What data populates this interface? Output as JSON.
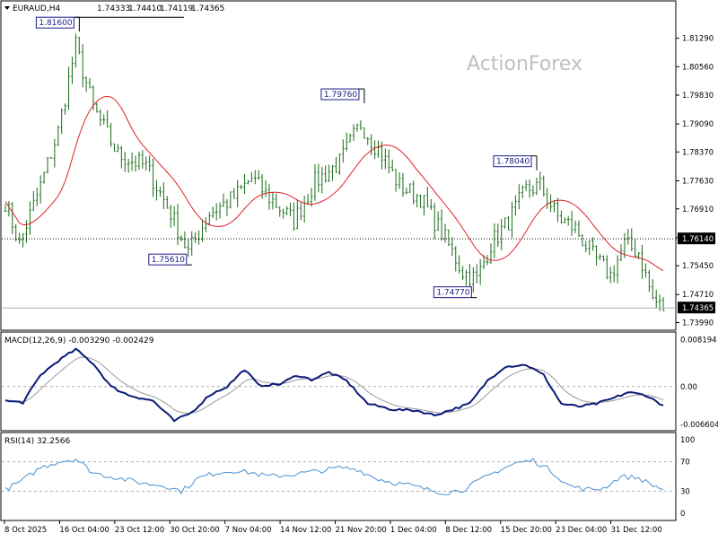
{
  "chart_data": {
    "type": "candlestick",
    "symbol_header": {
      "symbol": "EURAUD,H4",
      "ohlc": [
        "1.74333",
        "1.74410",
        "1.74119",
        "1.74365"
      ]
    },
    "watermark": "ActionForex",
    "price_axis": {
      "ticks": [
        1.8129,
        1.8056,
        1.7983,
        1.7909,
        1.7837,
        1.7763,
        1.7691,
        1.7617,
        1.7545,
        1.7471,
        1.7399
      ],
      "tick_labels": [
        "1.81290",
        "1.80560",
        "1.79830",
        "1.79090",
        "1.78370",
        "1.77630",
        "1.76910",
        "1.76170",
        "1.75450",
        "1.74710",
        "1.73990"
      ],
      "range": [
        1.7384,
        1.8195
      ]
    },
    "x_axis": {
      "labels": [
        "8 Oct 2025",
        "16 Oct 04:00",
        "23 Oct 12:00",
        "30 Oct 20:00",
        "7 Nov 04:00",
        "14 Nov 12:00",
        "21 Nov 20:00",
        "1 Dec 04:00",
        "8 Dec 12:00",
        "15 Dec 20:00",
        "23 Dec 04:00",
        "31 Dec 12:00"
      ],
      "bars": 300
    },
    "reference_levels": [
      {
        "value": 1.7614,
        "label": "1.76140",
        "style": "dotted"
      },
      {
        "value": 1.74365,
        "label": "1.74365",
        "style": "current"
      }
    ],
    "swing_labels": [
      {
        "label": "1.81600",
        "value": 1.816,
        "bar": 20,
        "side": "high"
      },
      {
        "label": "1.75610",
        "value": 1.7561,
        "bar": 52,
        "side": "low"
      },
      {
        "label": "1.79760",
        "value": 1.7976,
        "bar": 101,
        "side": "high"
      },
      {
        "label": "1.74770",
        "value": 1.7477,
        "bar": 133,
        "side": "low"
      },
      {
        "label": "1.78040",
        "value": 1.7804,
        "bar": 150,
        "side": "high"
      }
    ],
    "price_anchors": [
      [
        0,
        1.771
      ],
      [
        4,
        1.76
      ],
      [
        10,
        1.775
      ],
      [
        15,
        1.789
      ],
      [
        20,
        1.811
      ],
      [
        25,
        1.795
      ],
      [
        32,
        1.783
      ],
      [
        40,
        1.78
      ],
      [
        47,
        1.768
      ],
      [
        52,
        1.758
      ],
      [
        58,
        1.768
      ],
      [
        65,
        1.772
      ],
      [
        70,
        1.777
      ],
      [
        75,
        1.772
      ],
      [
        82,
        1.766
      ],
      [
        88,
        1.776
      ],
      [
        95,
        1.781
      ],
      [
        101,
        1.791
      ],
      [
        107,
        1.783
      ],
      [
        112,
        1.775
      ],
      [
        118,
        1.772
      ],
      [
        124,
        1.763
      ],
      [
        130,
        1.753
      ],
      [
        134,
        1.751
      ],
      [
        138,
        1.76
      ],
      [
        143,
        1.766
      ],
      [
        148,
        1.774
      ],
      [
        152,
        1.775
      ],
      [
        157,
        1.767
      ],
      [
        162,
        1.764
      ],
      [
        167,
        1.757
      ],
      [
        172,
        1.752
      ],
      [
        176,
        1.76
      ],
      [
        180,
        1.758
      ],
      [
        184,
        1.746
      ],
      [
        187,
        1.7436
      ]
    ],
    "moving_average": {
      "visible": true,
      "color": "#e0202a"
    },
    "macd": {
      "label": "MACD(12,26,9) -0.003290 -0.002429",
      "tick_labels": [
        "0.008194",
        "0.00",
        "-0.006604"
      ],
      "range": [
        -0.0074,
        0.0089
      ],
      "zero": 0.0,
      "main_color": "#0b1a78",
      "signal_color": "#9a9a9a",
      "anchors": [
        [
          0,
          -0.0025
        ],
        [
          5,
          -0.0028
        ],
        [
          10,
          0.002
        ],
        [
          15,
          0.0045
        ],
        [
          20,
          0.0065
        ],
        [
          25,
          0.004
        ],
        [
          30,
          0.0
        ],
        [
          35,
          -0.0015
        ],
        [
          42,
          -0.0025
        ],
        [
          48,
          -0.006
        ],
        [
          53,
          -0.0045
        ],
        [
          58,
          -0.0015
        ],
        [
          63,
          0.0
        ],
        [
          68,
          0.003
        ],
        [
          72,
          0.0002
        ],
        [
          78,
          0.0004
        ],
        [
          83,
          0.002
        ],
        [
          87,
          0.0012
        ],
        [
          92,
          0.0025
        ],
        [
          97,
          0.001
        ],
        [
          103,
          -0.003
        ],
        [
          110,
          -0.004
        ],
        [
          117,
          -0.0042
        ],
        [
          122,
          -0.005
        ],
        [
          127,
          -0.004
        ],
        [
          132,
          -0.003
        ],
        [
          137,
          0.001
        ],
        [
          142,
          0.0035
        ],
        [
          148,
          0.0038
        ],
        [
          153,
          0.002
        ],
        [
          158,
          -0.003
        ],
        [
          163,
          -0.0035
        ],
        [
          168,
          -0.003
        ],
        [
          173,
          -0.002
        ],
        [
          177,
          -0.001
        ],
        [
          182,
          -0.0015
        ],
        [
          187,
          -0.0033
        ]
      ]
    },
    "rsi": {
      "label": "RSI(14) 32.2566",
      "tick_labels": [
        "100",
        "70",
        "30",
        "0"
      ],
      "levels": [
        70,
        30
      ],
      "range": [
        0,
        100
      ],
      "color": "#4a90d0",
      "anchors": [
        [
          0,
          32
        ],
        [
          5,
          45
        ],
        [
          10,
          62
        ],
        [
          15,
          70
        ],
        [
          20,
          74
        ],
        [
          25,
          55
        ],
        [
          30,
          50
        ],
        [
          35,
          45
        ],
        [
          40,
          40
        ],
        [
          45,
          38
        ],
        [
          50,
          30
        ],
        [
          55,
          48
        ],
        [
          60,
          55
        ],
        [
          65,
          58
        ],
        [
          70,
          55
        ],
        [
          75,
          50
        ],
        [
          80,
          52
        ],
        [
          85,
          55
        ],
        [
          90,
          58
        ],
        [
          95,
          62
        ],
        [
          100,
          60
        ],
        [
          105,
          48
        ],
        [
          110,
          42
        ],
        [
          115,
          38
        ],
        [
          120,
          32
        ],
        [
          125,
          28
        ],
        [
          130,
          32
        ],
        [
          135,
          45
        ],
        [
          140,
          58
        ],
        [
          145,
          68
        ],
        [
          150,
          72
        ],
        [
          155,
          58
        ],
        [
          160,
          38
        ],
        [
          165,
          32
        ],
        [
          170,
          34
        ],
        [
          175,
          50
        ],
        [
          180,
          48
        ],
        [
          184,
          38
        ],
        [
          187,
          32.26
        ]
      ]
    }
  }
}
